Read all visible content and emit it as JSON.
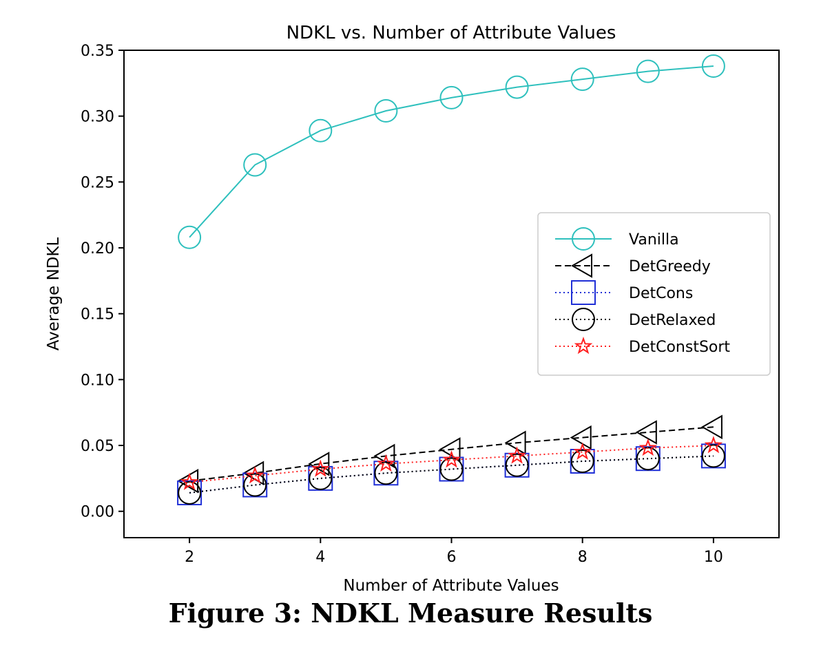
{
  "caption": "Figure 3: NDKL Measure Results",
  "chart_data": {
    "type": "line",
    "title": "NDKL vs. Number of Attribute Values",
    "xlabel": "Number of Attribute Values",
    "ylabel": "Average NDKL",
    "xlim": [
      1,
      11
    ],
    "ylim": [
      -0.02,
      0.35
    ],
    "x_ticks": [
      2,
      4,
      6,
      8,
      10
    ],
    "y_ticks": [
      0.0,
      0.05,
      0.1,
      0.15,
      0.2,
      0.25,
      0.3,
      0.35
    ],
    "y_tick_labels": [
      "0.00",
      "0.05",
      "0.10",
      "0.15",
      "0.20",
      "0.25",
      "0.30",
      "0.35"
    ],
    "grid": false,
    "legend_position": "center-right",
    "x": [
      2,
      3,
      4,
      5,
      6,
      7,
      8,
      9,
      10
    ],
    "series": [
      {
        "name": "Vanilla",
        "color": "#2ec0bd",
        "marker": "circle",
        "linestyle": "solid",
        "values": [
          0.208,
          0.263,
          0.289,
          0.304,
          0.314,
          0.322,
          0.328,
          0.334,
          0.338
        ]
      },
      {
        "name": "DetGreedy",
        "color": "#000000",
        "marker": "triangle-left",
        "linestyle": "dashed",
        "values": [
          0.023,
          0.029,
          0.036,
          0.042,
          0.047,
          0.052,
          0.056,
          0.06,
          0.064
        ]
      },
      {
        "name": "DetCons",
        "color": "#1f2fd6",
        "marker": "square",
        "linestyle": "dotted",
        "values": [
          0.014,
          0.02,
          0.025,
          0.029,
          0.032,
          0.035,
          0.038,
          0.04,
          0.042
        ]
      },
      {
        "name": "DetRelaxed",
        "color": "#000000",
        "marker": "circle",
        "linestyle": "dotted",
        "values": [
          0.014,
          0.02,
          0.025,
          0.029,
          0.032,
          0.035,
          0.038,
          0.04,
          0.042
        ]
      },
      {
        "name": "DetConstSort",
        "color": "#ff1f1f",
        "marker": "star",
        "linestyle": "dotted",
        "values": [
          0.022,
          0.027,
          0.032,
          0.036,
          0.039,
          0.042,
          0.045,
          0.048,
          0.05
        ]
      }
    ]
  }
}
